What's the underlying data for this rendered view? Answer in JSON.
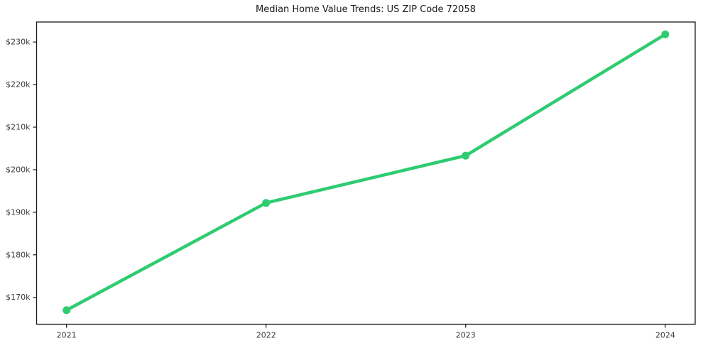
{
  "chart_data": {
    "type": "line",
    "title": "Median Home Value Trends: US ZIP Code 72058",
    "series_name": "Median home value (USD)",
    "categories": [
      "2021",
      "2022",
      "2023",
      "2024"
    ],
    "x": [
      2021,
      2022,
      2023,
      2024
    ],
    "values": [
      167000,
      192200,
      203300,
      231800
    ],
    "xlabel": "",
    "ylabel": "",
    "xlim": [
      2020.85,
      2024.15
    ],
    "ylim": [
      163700,
      234700
    ],
    "yticks": [
      170000,
      180000,
      190000,
      200000,
      210000,
      220000,
      230000
    ],
    "ytick_labels": [
      "$170k",
      "$180k",
      "$190k",
      "$200k",
      "$210k",
      "$220k",
      "$230k"
    ],
    "grid": false,
    "legend": "none",
    "line_color": "#2ecc71",
    "marker": "circle",
    "background": "#ffffff",
    "axis_color": "#1a1a1a",
    "tick_label_color": "#3c3c3c"
  }
}
